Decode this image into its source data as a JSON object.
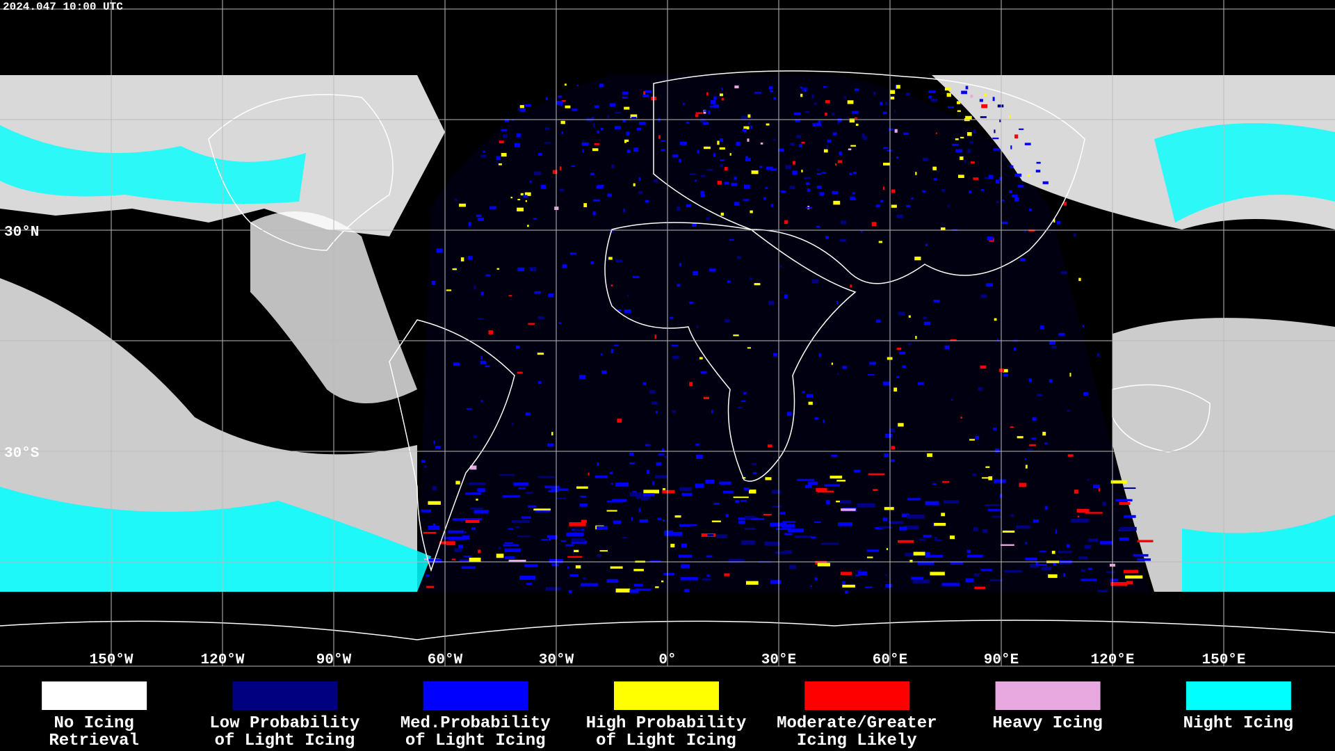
{
  "timestamp": "2024.047 10:00 UTC",
  "latitude_labels": [
    "30°N",
    "30°S"
  ],
  "longitude_labels": [
    "150°W",
    "120°W",
    "90°W",
    "60°W",
    "30°W",
    "0°",
    "30°E",
    "60°E",
    "90°E",
    "120°E",
    "150°E"
  ],
  "legend": [
    {
      "lines": [
        "No Icing",
        "Retrieval"
      ],
      "color": "#ffffff"
    },
    {
      "lines": [
        "Low Probability",
        "of Light Icing"
      ],
      "color": "#000080"
    },
    {
      "lines": [
        "Med.Probability",
        "of Light Icing"
      ],
      "color": "#0000ff"
    },
    {
      "lines": [
        "High Probability",
        "of Light Icing"
      ],
      "color": "#ffff00"
    },
    {
      "lines": [
        "Moderate/Greater",
        "Icing Likely"
      ],
      "color": "#ff0000"
    },
    {
      "lines": [
        "Heavy Icing"
      ],
      "color": "#e8a8e0"
    },
    {
      "lines": [
        "Night Icing"
      ],
      "color": "#00ffff"
    }
  ]
}
